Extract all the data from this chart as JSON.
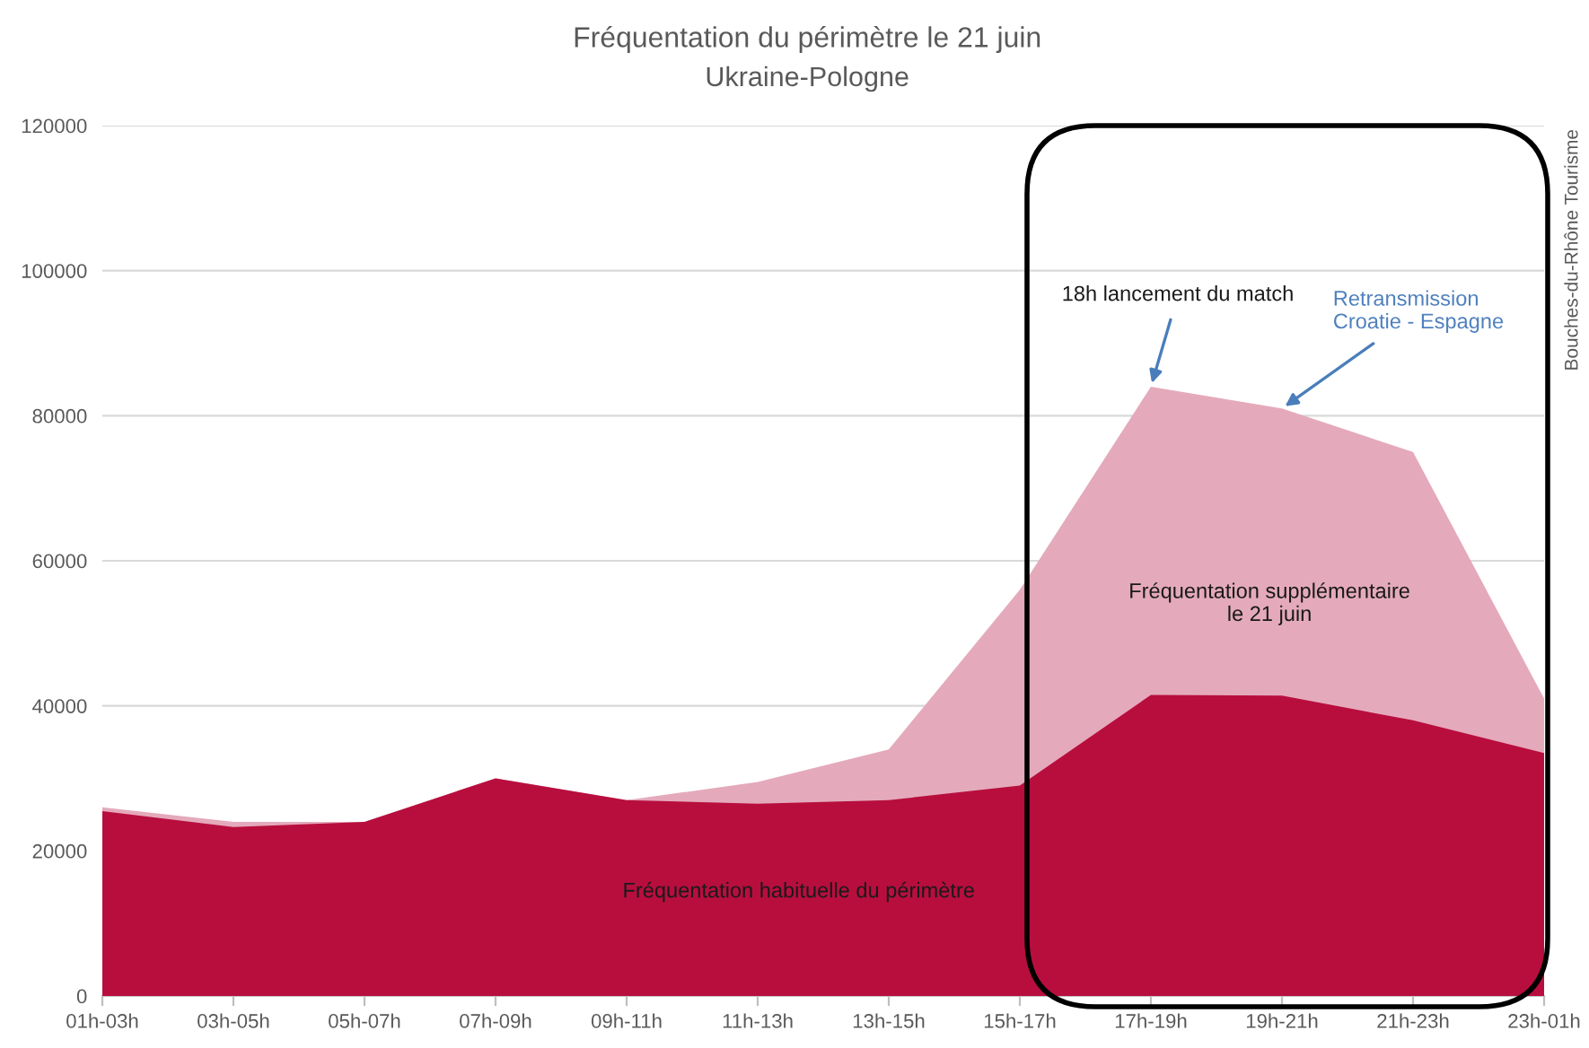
{
  "chart_data": {
    "type": "area",
    "title": "Fréquentation du périmètre le 21 juin",
    "subtitle": "Ukraine-Pologne",
    "categories": [
      "01h-03h",
      "03h-05h",
      "05h-07h",
      "07h-09h",
      "09h-11h",
      "11h-13h",
      "13h-15h",
      "15h-17h",
      "17h-19h",
      "19h-21h",
      "21h-23h",
      "23h-01h"
    ],
    "series": [
      {
        "name": "Fréquentation supplémentaire\nle 21 juin",
        "color": "#e4aabb",
        "values": [
          26000,
          24000,
          24000,
          30000,
          27000,
          29500,
          34000,
          56000,
          84000,
          81000,
          75000,
          41000
        ]
      },
      {
        "name": "Fréquentation habituelle du périmètre",
        "color": "#b80e3e",
        "values": [
          25500,
          23300,
          24000,
          30000,
          27000,
          26500,
          27000,
          29000,
          41500,
          41400,
          38000,
          33500
        ]
      }
    ],
    "ylim": [
      0,
      120000
    ],
    "yticks": [
      0,
      20000,
      40000,
      60000,
      80000,
      100000,
      120000
    ],
    "grid": "y",
    "annotations": [
      {
        "text": "18h lancement du match",
        "x": "17h-19h",
        "y": 84000
      },
      {
        "text": "Retransmission\nCroatie - Espagne",
        "x": "19h-21h",
        "y": 81000
      },
      "Bouches-du-Rhône Tourisme"
    ]
  }
}
